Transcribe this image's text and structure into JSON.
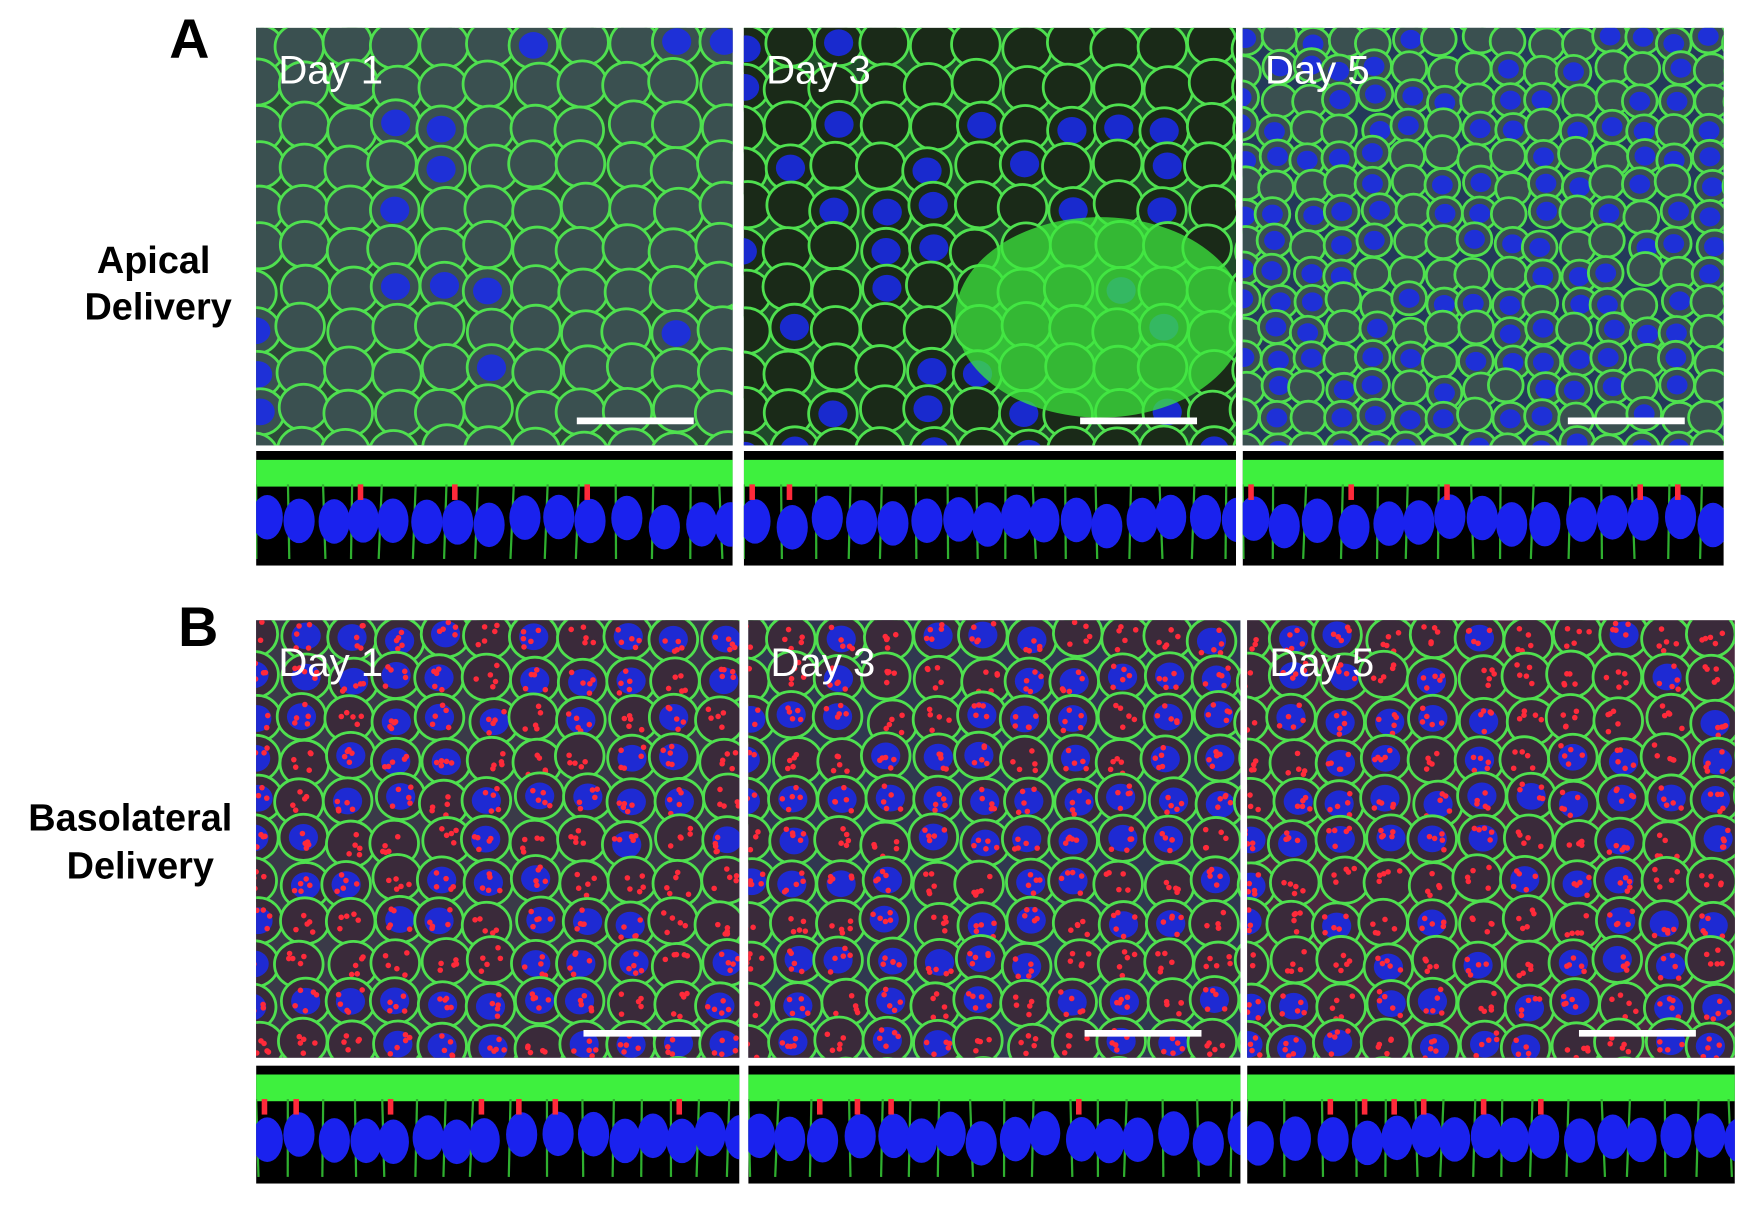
{
  "panels": [
    {
      "label": "A",
      "row_label": [
        "Apical",
        "Delivery"
      ],
      "images": [
        {
          "label": "Day 1"
        },
        {
          "label": "Day 3"
        },
        {
          "label": "Day 5"
        }
      ]
    },
    {
      "label": "B",
      "row_label": [
        "Basolateral",
        "Delivery"
      ],
      "images": [
        {
          "label": "Day 1"
        },
        {
          "label": "Day 3"
        },
        {
          "label": "Day 5"
        }
      ]
    }
  ]
}
